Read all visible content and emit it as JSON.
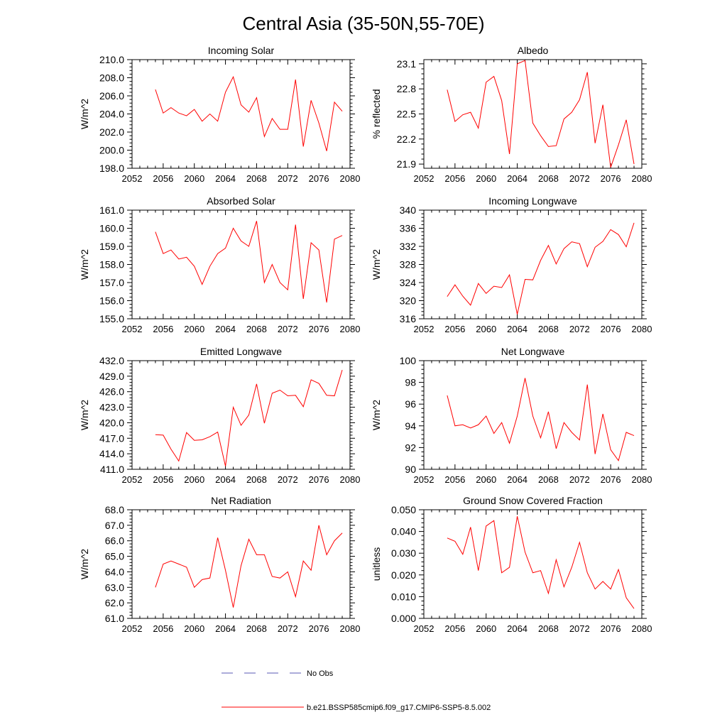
{
  "figure": {
    "title": "Central Asia (35-50N,55-70E)"
  },
  "colors": {
    "model": "#ff0000",
    "obs": "#5a5ab4",
    "axis": "#000000"
  },
  "legend": {
    "placement": "bottom-center",
    "obs_label": "No Obs",
    "model_label": "b.e21.BSSP585cmip6.f09_g17.CMIP6-SSP5-8.5.002"
  },
  "chart_data": [
    {
      "type": "line",
      "title": "Incoming Solar",
      "ylabel": "W/m^2",
      "xlim": [
        2052,
        2080
      ],
      "ylim": [
        198,
        210
      ],
      "xticks": [
        2052,
        2056,
        2060,
        2064,
        2068,
        2072,
        2076,
        2080
      ],
      "yticks": [
        "198.0",
        "200.0",
        "202.0",
        "204.0",
        "206.0",
        "208.0",
        "210.0"
      ],
      "series": [
        {
          "x": [
            2055,
            2056,
            2057,
            2058,
            2059,
            2060,
            2061,
            2062,
            2063,
            2064,
            2065,
            2066,
            2067,
            2068,
            2069,
            2070,
            2071,
            2072,
            2073,
            2074,
            2075,
            2076,
            2077,
            2078,
            2079
          ],
          "values": [
            206.7,
            204.1,
            204.7,
            204.1,
            203.8,
            204.5,
            203.2,
            204.0,
            203.2,
            206.4,
            208.1,
            205.0,
            204.2,
            205.8,
            201.5,
            203.5,
            202.3,
            202.3,
            207.8,
            200.4,
            205.5,
            203.0,
            199.9,
            205.3,
            204.3
          ]
        }
      ]
    },
    {
      "type": "line",
      "title": "Albedo",
      "ylabel": "% reflected",
      "xlim": [
        2052,
        2080
      ],
      "ylim": [
        21.85,
        23.15
      ],
      "xticks": [
        2052,
        2056,
        2060,
        2064,
        2068,
        2072,
        2076,
        2080
      ],
      "yticks": [
        "21.9",
        "22.2",
        "22.5",
        "22.8",
        "23.1"
      ],
      "series": [
        {
          "x": [
            2055,
            2056,
            2057,
            2058,
            2059,
            2060,
            2061,
            2062,
            2063,
            2064,
            2065,
            2066,
            2067,
            2068,
            2069,
            2070,
            2071,
            2072,
            2073,
            2074,
            2075,
            2076,
            2077,
            2078,
            2079
          ],
          "values": [
            22.79,
            22.41,
            22.49,
            22.52,
            22.33,
            22.88,
            22.95,
            22.66,
            22.02,
            23.1,
            23.14,
            22.39,
            22.24,
            22.11,
            22.12,
            22.44,
            22.52,
            22.67,
            23.0,
            22.15,
            22.61,
            21.86,
            22.13,
            22.43,
            21.9
          ]
        }
      ]
    },
    {
      "type": "line",
      "title": "Absorbed Solar",
      "ylabel": "W/m^2",
      "xlim": [
        2052,
        2080
      ],
      "ylim": [
        155,
        161
      ],
      "xticks": [
        2052,
        2056,
        2060,
        2064,
        2068,
        2072,
        2076,
        2080
      ],
      "yticks": [
        "155.0",
        "156.0",
        "157.0",
        "158.0",
        "159.0",
        "160.0",
        "161.0"
      ],
      "series": [
        {
          "x": [
            2055,
            2056,
            2057,
            2058,
            2059,
            2060,
            2061,
            2062,
            2063,
            2064,
            2065,
            2066,
            2067,
            2068,
            2069,
            2070,
            2071,
            2072,
            2073,
            2074,
            2075,
            2076,
            2077,
            2078,
            2079
          ],
          "values": [
            159.8,
            158.6,
            158.8,
            158.3,
            158.4,
            157.9,
            156.9,
            157.9,
            158.6,
            158.9,
            160.0,
            159.3,
            159.0,
            160.4,
            157.0,
            158.0,
            157.0,
            156.6,
            160.2,
            156.1,
            159.2,
            158.8,
            155.9,
            159.4,
            159.6
          ]
        }
      ]
    },
    {
      "type": "line",
      "title": "Incoming Longwave",
      "ylabel": "W/m^2",
      "xlim": [
        2052,
        2080
      ],
      "ylim": [
        316,
        340
      ],
      "xticks": [
        2052,
        2056,
        2060,
        2064,
        2068,
        2072,
        2076,
        2080
      ],
      "yticks": [
        "316",
        "320",
        "324",
        "328",
        "332",
        "336",
        "340"
      ],
      "series": [
        {
          "x": [
            2055,
            2056,
            2057,
            2058,
            2059,
            2060,
            2061,
            2062,
            2063,
            2064,
            2065,
            2066,
            2067,
            2068,
            2069,
            2070,
            2071,
            2072,
            2073,
            2074,
            2075,
            2076,
            2077,
            2078,
            2079
          ],
          "values": [
            320.9,
            323.5,
            321.0,
            319.0,
            323.8,
            321.6,
            323.2,
            322.9,
            325.7,
            317.0,
            324.7,
            324.6,
            328.9,
            332.2,
            328.1,
            331.5,
            333.0,
            332.6,
            327.5,
            331.8,
            333.1,
            335.7,
            334.6,
            331.9,
            337.2
          ]
        }
      ]
    },
    {
      "type": "line",
      "title": "Emitted Longwave",
      "ylabel": "W/m^2",
      "xlim": [
        2052,
        2080
      ],
      "ylim": [
        411,
        432
      ],
      "xticks": [
        2052,
        2056,
        2060,
        2064,
        2068,
        2072,
        2076,
        2080
      ],
      "yticks": [
        "411.0",
        "414.0",
        "417.0",
        "420.0",
        "423.0",
        "426.0",
        "429.0",
        "432.0"
      ],
      "series": [
        {
          "x": [
            2055,
            2056,
            2057,
            2058,
            2059,
            2060,
            2061,
            2062,
            2063,
            2064,
            2065,
            2066,
            2067,
            2068,
            2069,
            2070,
            2071,
            2072,
            2073,
            2074,
            2075,
            2076,
            2077,
            2078,
            2079
          ],
          "values": [
            417.7,
            417.6,
            414.9,
            412.6,
            418.1,
            416.6,
            416.7,
            417.3,
            418.2,
            411.6,
            423.0,
            419.5,
            421.5,
            427.5,
            419.9,
            425.7,
            426.3,
            425.2,
            425.3,
            423.1,
            428.3,
            427.6,
            425.3,
            425.2,
            430.2
          ]
        }
      ]
    },
    {
      "type": "line",
      "title": "Net Longwave",
      "ylabel": "W/m^2",
      "xlim": [
        2052,
        2080
      ],
      "ylim": [
        90,
        100
      ],
      "xticks": [
        2052,
        2056,
        2060,
        2064,
        2068,
        2072,
        2076,
        2080
      ],
      "yticks": [
        "90",
        "92",
        "94",
        "96",
        "98",
        "100"
      ],
      "series": [
        {
          "x": [
            2055,
            2056,
            2057,
            2058,
            2059,
            2060,
            2061,
            2062,
            2063,
            2064,
            2065,
            2066,
            2067,
            2068,
            2069,
            2070,
            2071,
            2072,
            2073,
            2074,
            2075,
            2076,
            2077,
            2078,
            2079
          ],
          "values": [
            96.8,
            94.0,
            94.1,
            93.8,
            94.1,
            94.9,
            93.3,
            94.3,
            92.4,
            94.9,
            98.4,
            94.9,
            92.9,
            95.3,
            91.9,
            94.3,
            93.4,
            92.7,
            97.8,
            91.4,
            95.1,
            91.8,
            90.8,
            93.4,
            93.1
          ]
        }
      ]
    },
    {
      "type": "line",
      "title": "Net Radiation",
      "ylabel": "W/m^2",
      "xlim": [
        2052,
        2080
      ],
      "ylim": [
        61,
        68
      ],
      "xticks": [
        2052,
        2056,
        2060,
        2064,
        2068,
        2072,
        2076,
        2080
      ],
      "yticks": [
        "61.0",
        "62.0",
        "63.0",
        "64.0",
        "65.0",
        "66.0",
        "67.0",
        "68.0"
      ],
      "series": [
        {
          "x": [
            2055,
            2056,
            2057,
            2058,
            2059,
            2060,
            2061,
            2062,
            2063,
            2064,
            2065,
            2066,
            2067,
            2068,
            2069,
            2070,
            2071,
            2072,
            2073,
            2074,
            2075,
            2076,
            2077,
            2078,
            2079
          ],
          "values": [
            63.0,
            64.5,
            64.7,
            64.5,
            64.3,
            63.0,
            63.5,
            63.6,
            66.2,
            64.1,
            61.7,
            64.4,
            66.1,
            65.1,
            65.1,
            63.7,
            63.6,
            64.0,
            62.4,
            64.7,
            64.1,
            67.0,
            65.1,
            66.0,
            66.5
          ]
        }
      ]
    },
    {
      "type": "line",
      "title": "Ground Snow Covered Fraction",
      "ylabel": "unitless",
      "xlim": [
        2052,
        2080
      ],
      "ylim": [
        0,
        0.05
      ],
      "xticks": [
        2052,
        2056,
        2060,
        2064,
        2068,
        2072,
        2076,
        2080
      ],
      "yticks": [
        "0.000",
        "0.010",
        "0.020",
        "0.030",
        "0.040",
        "0.050"
      ],
      "series": [
        {
          "x": [
            2055,
            2056,
            2057,
            2058,
            2059,
            2060,
            2061,
            2062,
            2063,
            2064,
            2065,
            2066,
            2067,
            2068,
            2069,
            2070,
            2071,
            2072,
            2073,
            2074,
            2075,
            2076,
            2077,
            2078,
            2079
          ],
          "values": [
            0.037,
            0.0355,
            0.0295,
            0.042,
            0.022,
            0.0425,
            0.045,
            0.021,
            0.0235,
            0.047,
            0.0305,
            0.021,
            0.022,
            0.0115,
            0.027,
            0.0145,
            0.0235,
            0.035,
            0.021,
            0.0135,
            0.017,
            0.0135,
            0.0225,
            0.0095,
            0.0045
          ]
        }
      ]
    }
  ]
}
